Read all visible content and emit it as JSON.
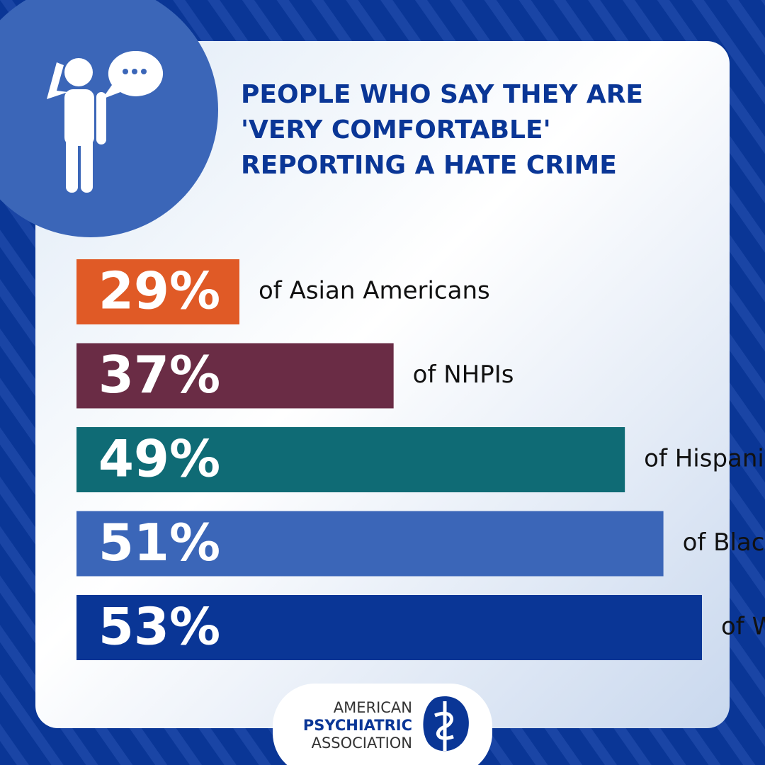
{
  "chart_data": {
    "type": "bar",
    "orientation": "horizontal",
    "title": [
      "PEOPLE WHO SAY THEY ARE",
      "'VERY COMFORTABLE'",
      "REPORTING A HATE CRIME"
    ],
    "categories": [
      "of Asian Americans",
      "of NHPIs",
      "of Hispanics/Latinos",
      "of Blacks/African Americans",
      "of Whites"
    ],
    "values": [
      29,
      37,
      49,
      51,
      53
    ],
    "value_labels": [
      "29%",
      "37%",
      "49%",
      "51%",
      "53%"
    ],
    "colors": [
      "#e05a26",
      "#6a2c45",
      "#0f6b75",
      "#3b66b8",
      "#0a3696"
    ]
  },
  "logo": {
    "lines": [
      "AMERICAN",
      "PSYCHIATRIC",
      "ASSOCIATION"
    ]
  }
}
